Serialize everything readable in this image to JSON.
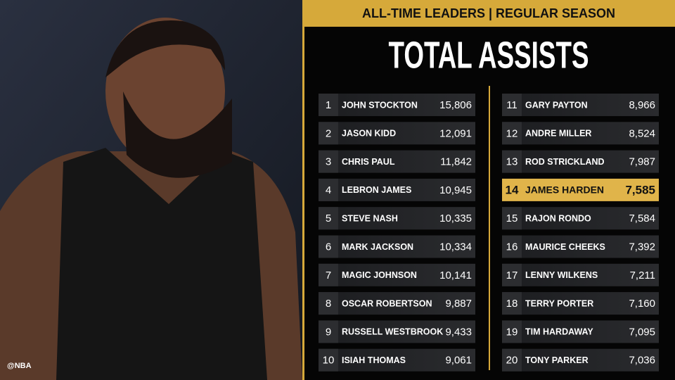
{
  "header": {
    "subtitle": "ALL-TIME LEADERS | REGULAR SEASON",
    "title": "TOTAL ASSISTS"
  },
  "credit": "@NBA",
  "table": {
    "rows": [
      {
        "rank": 1,
        "name": "JOHN STOCKTON",
        "assists": "15,806"
      },
      {
        "rank": 2,
        "name": "JASON KIDD",
        "assists": "12,091"
      },
      {
        "rank": 3,
        "name": "CHRIS PAUL",
        "assists": "11,842"
      },
      {
        "rank": 4,
        "name": "LEBRON JAMES",
        "assists": "10,945"
      },
      {
        "rank": 5,
        "name": "STEVE NASH",
        "assists": "10,335"
      },
      {
        "rank": 6,
        "name": "MARK JACKSON",
        "assists": "10,334"
      },
      {
        "rank": 7,
        "name": "MAGIC JOHNSON",
        "assists": "10,141"
      },
      {
        "rank": 8,
        "name": "OSCAR ROBERTSON",
        "assists": "9,887"
      },
      {
        "rank": 9,
        "name": "RUSSELL WESTBROOK",
        "assists": "9,433"
      },
      {
        "rank": 10,
        "name": "ISIAH THOMAS",
        "assists": "9,061"
      },
      {
        "rank": 11,
        "name": "GARY PAYTON",
        "assists": "8,966"
      },
      {
        "rank": 12,
        "name": "ANDRE MILLER",
        "assists": "8,524"
      },
      {
        "rank": 13,
        "name": "ROD STRICKLAND",
        "assists": "7,987"
      },
      {
        "rank": 14,
        "name": "JAMES HARDEN",
        "assists": "7,585",
        "highlight": true
      },
      {
        "rank": 15,
        "name": "RAJON RONDO",
        "assists": "7,584"
      },
      {
        "rank": 16,
        "name": "MAURICE CHEEKS",
        "assists": "7,392"
      },
      {
        "rank": 17,
        "name": "LENNY WILKENS",
        "assists": "7,211"
      },
      {
        "rank": 18,
        "name": "TERRY PORTER",
        "assists": "7,160"
      },
      {
        "rank": 19,
        "name": "TIM HARDAWAY",
        "assists": "7,095"
      },
      {
        "rank": 20,
        "name": "TONY PARKER",
        "assists": "7,036"
      }
    ]
  }
}
